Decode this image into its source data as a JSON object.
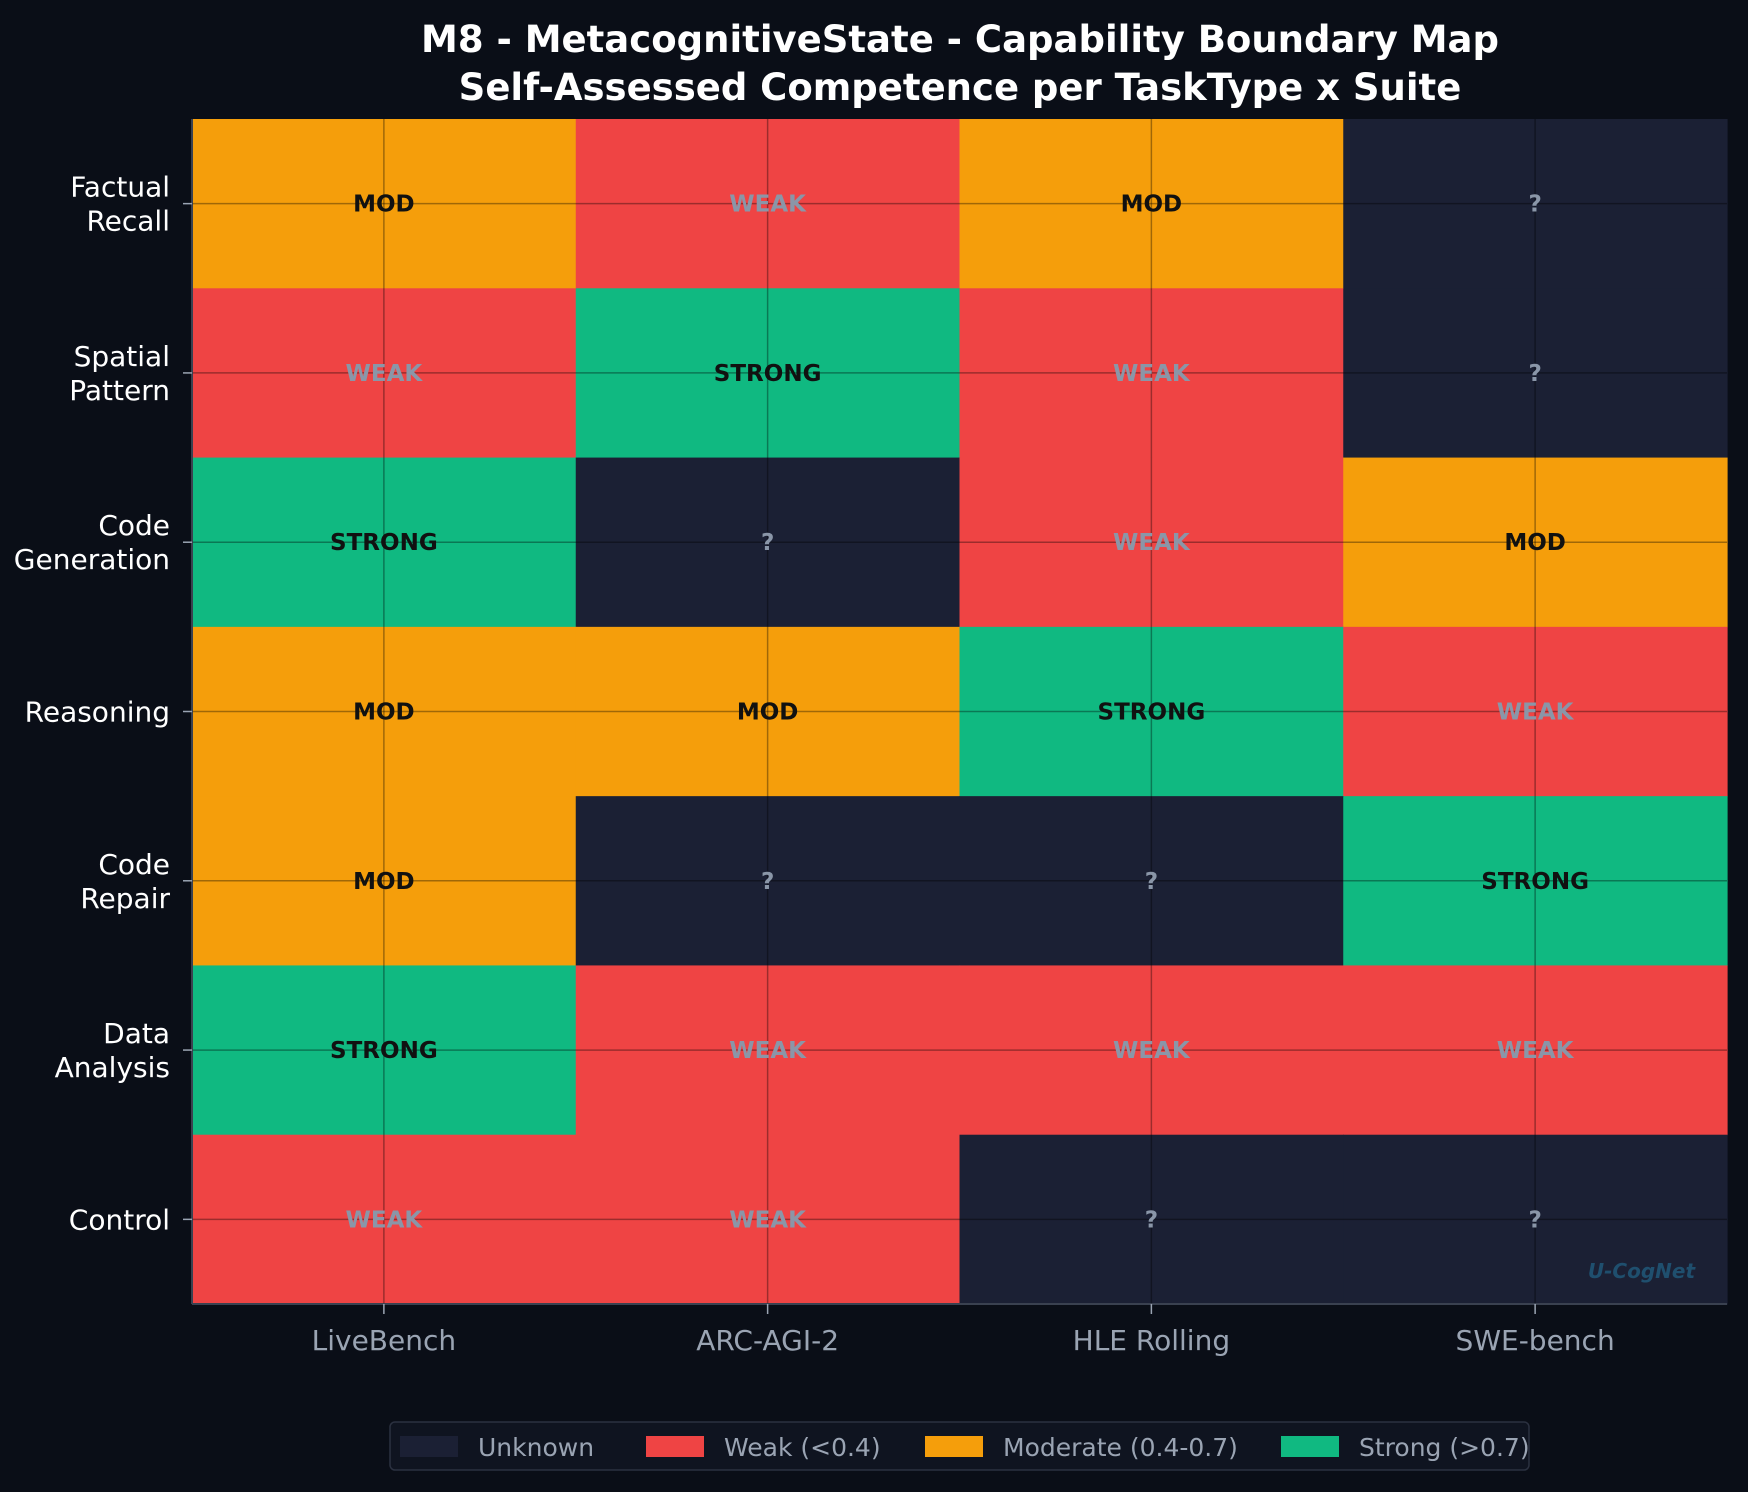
{
  "chart_data": {
    "type": "heatmap",
    "title": "M8 - MetacognitiveState - Capability Boundary Map",
    "subtitle": "Self-Assessed Competence per TaskType x Suite",
    "x_categories": [
      "LiveBench",
      "ARC-AGI-2",
      "HLE Rolling",
      "SWE-bench"
    ],
    "y_categories": [
      "Factual\nRecall",
      "Spatial\nPattern",
      "Code\nGeneration",
      "Reasoning",
      "Code\nRepair",
      "Data\nAnalysis",
      "Control"
    ],
    "levels": [
      "Unknown",
      "Weak",
      "Moderate",
      "Strong"
    ],
    "level_labels": {
      "Unknown": "?",
      "Weak": "WEAK",
      "Moderate": "MOD",
      "Strong": "STRONG"
    },
    "level_colors": {
      "Unknown": "#1b2034",
      "Weak": "#ef4444",
      "Moderate": "#f59e0b",
      "Strong": "#10b981"
    },
    "text_colors": {
      "Unknown": "#8a96a8",
      "Weak": "#8a96a8",
      "Moderate": "#111111",
      "Strong": "#111111"
    },
    "grid": true,
    "cells": [
      [
        "Moderate",
        "Weak",
        "Moderate",
        "Unknown"
      ],
      [
        "Weak",
        "Strong",
        "Weak",
        "Unknown"
      ],
      [
        "Strong",
        "Unknown",
        "Weak",
        "Moderate"
      ],
      [
        "Moderate",
        "Moderate",
        "Strong",
        "Weak"
      ],
      [
        "Moderate",
        "Unknown",
        "Unknown",
        "Strong"
      ],
      [
        "Strong",
        "Weak",
        "Weak",
        "Weak"
      ],
      [
        "Weak",
        "Weak",
        "Unknown",
        "Unknown"
      ]
    ],
    "legend": {
      "placement": "bottom-center",
      "entries": [
        {
          "level": "Unknown",
          "label": "Unknown"
        },
        {
          "level": "Weak",
          "label": "Weak (<0.4)"
        },
        {
          "level": "Moderate",
          "label": "Moderate (0.4-0.7)"
        },
        {
          "level": "Strong",
          "label": "Strong (>0.7)"
        }
      ]
    },
    "watermark": "U-CogNet"
  }
}
